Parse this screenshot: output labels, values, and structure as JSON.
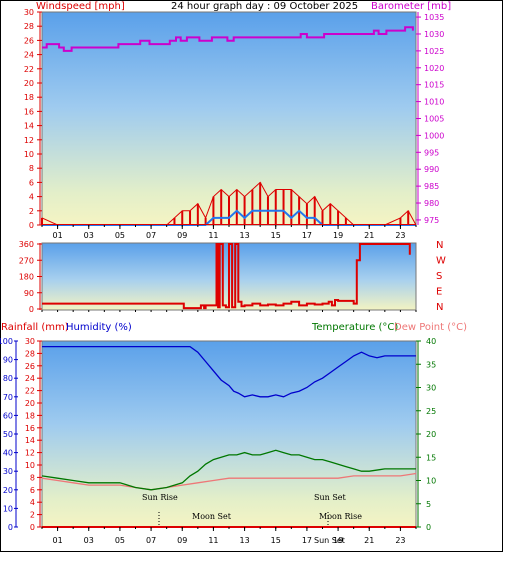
{
  "header": {
    "title": "24 hour graph day : 09 October 2025",
    "wind_label": "Windspeed [mph]",
    "baro_label": "Barometer [mb]"
  },
  "lower_header": {
    "rain_label": "Rainfall (mm)",
    "humidity_label": "Humidity (%)",
    "temp_label": "Temperature (°C)",
    "dew_label": "Dew Point (°C)"
  },
  "x_ticks": [
    "01",
    "03",
    "05",
    "07",
    "09",
    "11",
    "13",
    "15",
    "17",
    "19",
    "21",
    "23"
  ],
  "compass_labels": [
    "N",
    "W",
    "S",
    "E",
    "N"
  ],
  "annotations": {
    "sun_rise": "Sun Rise",
    "sun_set": "Sun Set",
    "moon_set": "Moon Set",
    "moon_rise": "Moon Rise",
    "sun_set_bottom": "Sun Set"
  },
  "colors": {
    "wind": "#dd0000",
    "gust": "#dd0000",
    "avg_wind": "#2277ee",
    "barometer": "#cc00cc",
    "direction": "#dd0000",
    "humidity": "#0000cc",
    "temperature": "#007700",
    "dew_point": "#ee7777",
    "rain": "#dd0000"
  },
  "chart_data": [
    {
      "type": "line",
      "name": "wind_barometer",
      "x_range": [
        0,
        24
      ],
      "y_left": {
        "label": "Windspeed [mph]",
        "ticks": [
          0,
          2,
          4,
          6,
          8,
          10,
          12,
          14,
          16,
          18,
          20,
          22,
          24,
          26,
          28,
          30
        ],
        "ylim": [
          0,
          30
        ]
      },
      "y_right": {
        "label": "Barometer [mb]",
        "ticks": [
          975,
          980,
          985,
          990,
          995,
          1000,
          1005,
          1010,
          1015,
          1020,
          1025,
          1030,
          1035
        ],
        "ylim": [
          973.5,
          1036.5
        ]
      },
      "series": [
        {
          "name": "Barometer [mb]",
          "axis": "right",
          "x": [
            0,
            0.3,
            1.1,
            1.4,
            1.9,
            3.0,
            4.9,
            6.3,
            6.9,
            8.2,
            8.6,
            8.9,
            9.3,
            10.1,
            10.9,
            11.9,
            12.3,
            13.9,
            14.7,
            15.1,
            16.3,
            16.6,
            17.0,
            18.1,
            19.5,
            20.5,
            21.3,
            21.6,
            22.1,
            22.5,
            23.3,
            23.8
          ],
          "y": [
            1026,
            1027,
            1026,
            1025,
            1026,
            1026,
            1027,
            1028,
            1027,
            1028,
            1029,
            1028,
            1029,
            1028,
            1029,
            1028,
            1029,
            1029,
            1029,
            1029,
            1029,
            1030,
            1029,
            1030,
            1030,
            1030,
            1031,
            1030,
            1031,
            1031,
            1032,
            1031
          ]
        },
        {
          "name": "Windspeed gust [mph]",
          "axis": "left",
          "x": [
            0,
            1,
            2,
            3,
            4,
            5,
            6,
            7,
            8,
            8.5,
            9,
            9.5,
            10,
            10.5,
            11,
            11.5,
            12,
            12.5,
            13,
            13.5,
            14,
            14.5,
            15,
            15.5,
            16,
            16.5,
            17,
            17.5,
            18,
            18.5,
            19,
            19.5,
            20,
            21,
            22,
            23,
            23.5,
            24
          ],
          "y": [
            1,
            0,
            0,
            0,
            0,
            0,
            0,
            0,
            0,
            1,
            2,
            2,
            3,
            1,
            4,
            5,
            4,
            5,
            4,
            5,
            6,
            4,
            5,
            5,
            5,
            4,
            3,
            4,
            2,
            3,
            2,
            1,
            0,
            0,
            0,
            1,
            2,
            0
          ]
        },
        {
          "name": "Average windspeed [mph]",
          "axis": "left",
          "x": [
            0,
            9,
            10,
            10.5,
            11,
            11.5,
            12,
            12.5,
            13,
            13.5,
            14,
            14.5,
            15,
            15.5,
            16,
            16.5,
            17,
            17.5,
            18,
            19,
            24
          ],
          "y": [
            0,
            0,
            0,
            0,
            1,
            1,
            1,
            2,
            1,
            2,
            2,
            2,
            2,
            2,
            1,
            2,
            1,
            1,
            0,
            0,
            0
          ]
        }
      ]
    },
    {
      "type": "line",
      "name": "wind_direction",
      "x_range": [
        0,
        24
      ],
      "y_left": {
        "ticks": [
          0,
          90,
          180,
          270,
          360
        ],
        "ylim": [
          0,
          360
        ]
      },
      "y_right_labels": [
        "N",
        "W",
        "S",
        "E",
        "N"
      ],
      "series": [
        {
          "name": "Wind direction [deg]",
          "x": [
            0,
            9.0,
            9.1,
            10.0,
            10.2,
            10.4,
            10.5,
            11.0,
            11.2,
            11.3,
            11.4,
            11.6,
            11.8,
            12.0,
            12.2,
            12.4,
            12.6,
            12.8,
            13.0,
            13.5,
            14.0,
            14.5,
            15.0,
            15.5,
            16.0,
            16.5,
            17.0,
            17.5,
            18.0,
            18.4,
            18.6,
            18.8,
            19.0,
            20.0,
            20.2,
            20.4,
            21.0,
            22.0,
            23.0,
            23.4,
            23.6
          ],
          "y": [
            30,
            30,
            5,
            5,
            20,
            5,
            20,
            20,
            360,
            10,
            360,
            20,
            10,
            360,
            10,
            360,
            40,
            15,
            20,
            30,
            20,
            25,
            20,
            30,
            40,
            20,
            30,
            25,
            30,
            40,
            20,
            50,
            45,
            30,
            270,
            360,
            360,
            360,
            360,
            360,
            300
          ]
        }
      ]
    },
    {
      "type": "line",
      "name": "rain_humidity_temperature",
      "x_range": [
        0,
        24
      ],
      "y_humidity": {
        "label": "Humidity (%)",
        "ticks": [
          0,
          10,
          20,
          30,
          40,
          50,
          60,
          70,
          80,
          90,
          100
        ],
        "ylim": [
          0,
          100
        ]
      },
      "y_rain": {
        "label": "Rainfall (mm)",
        "ticks": [
          0,
          2,
          4,
          6,
          8,
          10,
          12,
          14,
          16,
          18,
          20,
          22,
          24,
          26,
          28,
          30
        ],
        "ylim": [
          0,
          30
        ]
      },
      "y_temp": {
        "label": "Temperature (°C)",
        "ticks": [
          0,
          5,
          10,
          15,
          20,
          25,
          30,
          35,
          40
        ],
        "ylim": [
          0,
          40
        ]
      },
      "series": [
        {
          "name": "Humidity (%)",
          "axis": "humidity",
          "x": [
            0,
            9.5,
            10,
            10.5,
            11,
            11.5,
            12,
            12.3,
            12.6,
            13,
            13.5,
            14,
            14.5,
            15,
            15.5,
            16,
            16.5,
            17,
            17.5,
            18,
            18.5,
            19,
            19.5,
            20,
            20.5,
            21,
            21.5,
            22,
            23,
            24
          ],
          "y": [
            97,
            97,
            94,
            89,
            84,
            79,
            76,
            73,
            72,
            70,
            71,
            70,
            70,
            71,
            70,
            72,
            73,
            75,
            78,
            80,
            83,
            86,
            89,
            92,
            94,
            92,
            91,
            92,
            92,
            92
          ]
        },
        {
          "name": "Temperature (°C)",
          "axis": "temp",
          "x": [
            0,
            1,
            2,
            3,
            4,
            5,
            6,
            7,
            8,
            9,
            9.5,
            10,
            10.5,
            11,
            11.5,
            12,
            12.5,
            13,
            13.5,
            14,
            14.5,
            15,
            15.5,
            16,
            16.5,
            17,
            17.5,
            18,
            18.5,
            19,
            19.5,
            20,
            20.5,
            21,
            22,
            23,
            24
          ],
          "y": [
            11,
            10.5,
            10,
            9.5,
            9.5,
            9.5,
            8.5,
            8,
            8.5,
            9.5,
            11,
            12,
            13.5,
            14.5,
            15,
            15.5,
            15.5,
            16,
            15.5,
            15.5,
            16,
            16.5,
            16,
            15.5,
            15.5,
            15,
            14.5,
            14.5,
            14,
            13.5,
            13,
            12.5,
            12,
            12,
            12.5,
            12.5,
            12.5
          ]
        },
        {
          "name": "Dew Point (°C)",
          "axis": "temp",
          "x": [
            0,
            1,
            2,
            3,
            4,
            5,
            6,
            7,
            8,
            9,
            10,
            11,
            12,
            13,
            14,
            15,
            16,
            17,
            18,
            19,
            20,
            21,
            22,
            23,
            24
          ],
          "y": [
            10.5,
            10,
            9.5,
            9,
            9,
            9,
            8.5,
            8,
            8.5,
            9,
            9.5,
            10,
            10.5,
            10.5,
            10.5,
            10.5,
            10.5,
            10.5,
            10.5,
            10.5,
            11,
            11,
            11,
            11,
            11.5
          ]
        },
        {
          "name": "Rainfall (mm)",
          "axis": "rain",
          "x": [
            0,
            24
          ],
          "y": [
            0,
            0
          ]
        }
      ]
    }
  ]
}
